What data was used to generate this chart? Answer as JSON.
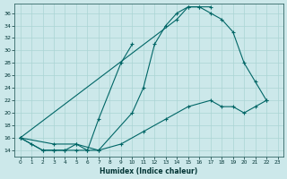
{
  "xlabel": "Humidex (Indice chaleur)",
  "bg_color": "#cce8ea",
  "grid_color": "#aad4d4",
  "line_color": "#006666",
  "xlim": [
    -0.5,
    23.5
  ],
  "ylim": [
    13,
    37.5
  ],
  "xtick_vals": [
    0,
    1,
    2,
    3,
    4,
    5,
    6,
    7,
    8,
    9,
    10,
    11,
    12,
    13,
    14,
    15,
    16,
    17,
    18,
    19,
    20,
    21,
    22,
    23
  ],
  "ytick_vals": [
    14,
    16,
    18,
    20,
    22,
    24,
    26,
    28,
    30,
    32,
    34,
    36
  ],
  "curve1_x": [
    0,
    1,
    2,
    3,
    4,
    5,
    6,
    7,
    10,
    11,
    12,
    13,
    14,
    15,
    16,
    17
  ],
  "curve1_y": [
    16,
    15,
    14,
    14,
    14,
    14,
    14,
    14,
    20,
    24,
    31,
    34,
    36,
    37,
    37,
    37
  ],
  "curve2_x": [
    0,
    2,
    3,
    4,
    5,
    6,
    7,
    9,
    10
  ],
  "curve2_y": [
    16,
    14,
    14,
    14,
    15,
    14,
    19,
    28,
    31
  ],
  "curve3_x": [
    0,
    14,
    15,
    16,
    17,
    18,
    19,
    20,
    21,
    22
  ],
  "curve3_y": [
    16,
    35,
    37,
    37,
    36,
    35,
    33,
    28,
    25,
    22
  ],
  "curve4_x": [
    0,
    3,
    5,
    7,
    9,
    11,
    13,
    15,
    17,
    18,
    19,
    20,
    21,
    22
  ],
  "curve4_y": [
    16,
    15,
    15,
    14,
    15,
    17,
    19,
    21,
    22,
    21,
    21,
    20,
    21,
    22
  ]
}
